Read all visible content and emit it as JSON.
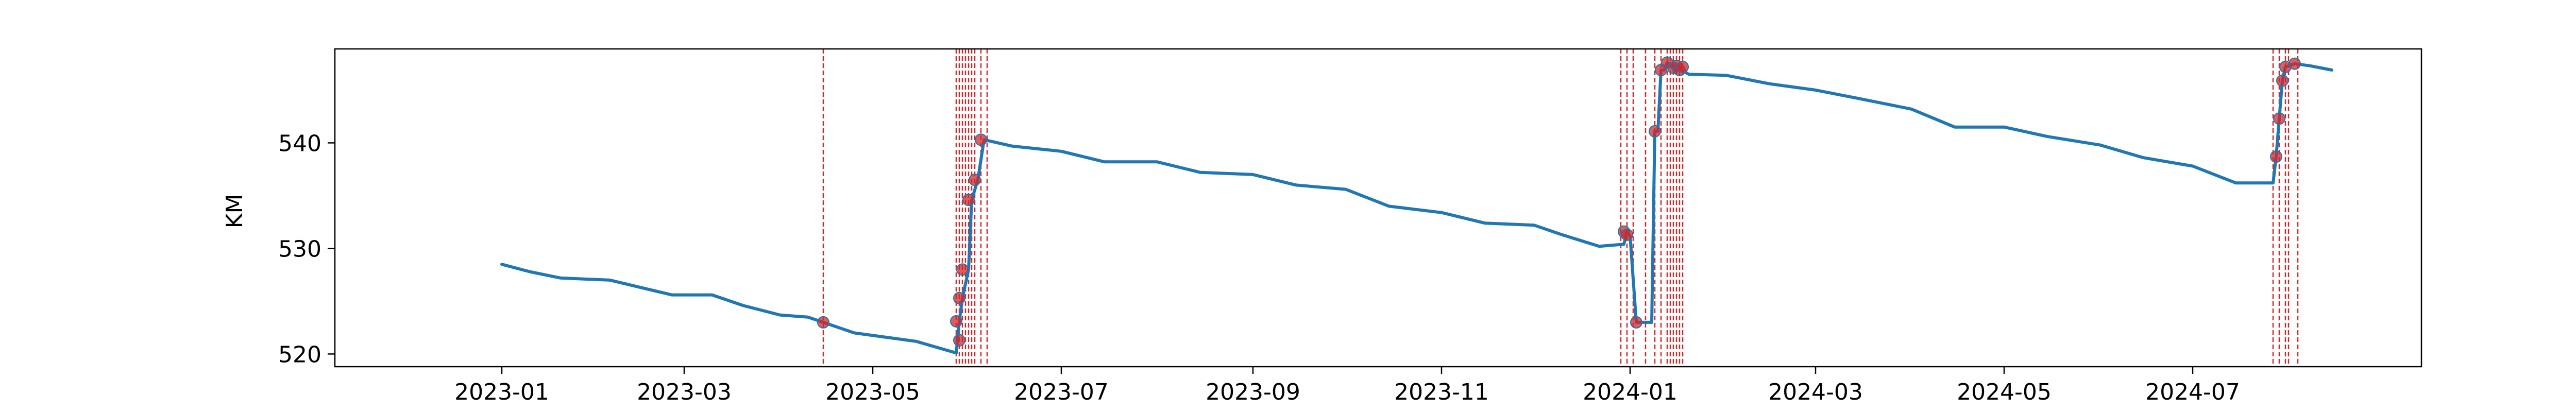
{
  "chart_data": {
    "type": "line",
    "title": "",
    "xlabel": "",
    "ylabel": "KM",
    "xlim": [
      "2022-11-08",
      "2024-09-13"
    ],
    "ylim": [
      518.8,
      548.9
    ],
    "x_ticks": [
      "2023-01",
      "2023-03",
      "2023-05",
      "2023-07",
      "2023-09",
      "2023-11",
      "2024-01",
      "2024-03",
      "2024-05",
      "2024-07"
    ],
    "y_ticks": [
      520,
      530,
      540
    ],
    "grid": false,
    "legend": "none",
    "colors": {
      "line": "#1f77b4",
      "markers": "#d62728",
      "vlines": "#d62728",
      "axes": "#000000"
    },
    "series": [
      {
        "points": [
          [
            "2023-01-01",
            528.5
          ],
          [
            "2023-01-10",
            527.8
          ],
          [
            "2023-01-20",
            527.2
          ],
          [
            "2023-02-05",
            527.0
          ],
          [
            "2023-02-15",
            526.3
          ],
          [
            "2023-02-25",
            525.6
          ],
          [
            "2023-03-10",
            525.6
          ],
          [
            "2023-03-20",
            524.6
          ],
          [
            "2023-04-01",
            523.7
          ],
          [
            "2023-04-10",
            523.5
          ],
          [
            "2023-04-15",
            523.0
          ],
          [
            "2023-04-25",
            522.0
          ],
          [
            "2023-05-05",
            521.6
          ],
          [
            "2023-05-15",
            521.2
          ],
          [
            "2023-05-28",
            520.1
          ],
          [
            "2023-05-29",
            523.1
          ],
          [
            "2023-05-30",
            525.3
          ],
          [
            "2023-06-01",
            528.0
          ],
          [
            "2023-06-02",
            534.6
          ],
          [
            "2023-06-04",
            536.5
          ],
          [
            "2023-06-06",
            540.3
          ],
          [
            "2023-06-15",
            539.7
          ],
          [
            "2023-07-01",
            539.2
          ],
          [
            "2023-07-15",
            538.2
          ],
          [
            "2023-08-01",
            538.2
          ],
          [
            "2023-08-15",
            537.2
          ],
          [
            "2023-09-01",
            537.0
          ],
          [
            "2023-09-15",
            536.0
          ],
          [
            "2023-10-01",
            535.6
          ],
          [
            "2023-10-15",
            534.0
          ],
          [
            "2023-11-01",
            533.4
          ],
          [
            "2023-11-15",
            532.4
          ],
          [
            "2023-12-01",
            532.2
          ],
          [
            "2023-12-10",
            531.3
          ],
          [
            "2023-12-22",
            530.2
          ],
          [
            "2023-12-30",
            530.4
          ],
          [
            "2023-12-31",
            531.6
          ],
          [
            "2024-01-01",
            531.2
          ],
          [
            "2024-01-03",
            523.0
          ],
          [
            "2024-01-08",
            523.0
          ],
          [
            "2024-01-09",
            541.1
          ],
          [
            "2024-01-10",
            541.1
          ],
          [
            "2024-01-11",
            546.9
          ],
          [
            "2024-01-12",
            546.9
          ],
          [
            "2024-01-13",
            547.6
          ],
          [
            "2024-01-15",
            547.3
          ],
          [
            "2024-01-17",
            547.0
          ],
          [
            "2024-01-20",
            546.5
          ],
          [
            "2024-02-01",
            546.4
          ],
          [
            "2024-02-15",
            545.6
          ],
          [
            "2024-03-01",
            545.0
          ],
          [
            "2024-03-15",
            544.2
          ],
          [
            "2024-04-01",
            543.2
          ],
          [
            "2024-04-15",
            541.5
          ],
          [
            "2024-05-01",
            541.5
          ],
          [
            "2024-05-15",
            540.6
          ],
          [
            "2024-06-01",
            539.8
          ],
          [
            "2024-06-15",
            538.6
          ],
          [
            "2024-07-01",
            537.8
          ],
          [
            "2024-07-15",
            536.2
          ],
          [
            "2024-07-27",
            536.2
          ],
          [
            "2024-07-28",
            538.7
          ],
          [
            "2024-07-29",
            542.3
          ],
          [
            "2024-07-30",
            545.9
          ],
          [
            "2024-07-31",
            547.2
          ],
          [
            "2024-08-03",
            547.5
          ],
          [
            "2024-08-08",
            547.3
          ],
          [
            "2024-08-15",
            546.9
          ]
        ]
      }
    ],
    "markers": [
      [
        "2023-04-15",
        523.0
      ],
      [
        "2023-05-28",
        523.1
      ],
      [
        "2023-05-29",
        521.3
      ],
      [
        "2023-05-29",
        525.3
      ],
      [
        "2023-05-30",
        528.0
      ],
      [
        "2023-06-01",
        534.6
      ],
      [
        "2023-06-03",
        536.5
      ],
      [
        "2023-06-05",
        540.3
      ],
      [
        "2023-12-30",
        531.6
      ],
      [
        "2023-12-31",
        531.3
      ],
      [
        "2024-01-03",
        523.0
      ],
      [
        "2024-01-09",
        541.1
      ],
      [
        "2024-01-11",
        546.9
      ],
      [
        "2024-01-13",
        547.6
      ],
      [
        "2024-01-15",
        547.1
      ],
      [
        "2024-01-16",
        547.3
      ],
      [
        "2024-01-17",
        546.9
      ],
      [
        "2024-01-18",
        547.2
      ],
      [
        "2024-07-28",
        538.7
      ],
      [
        "2024-07-29",
        542.3
      ],
      [
        "2024-07-30",
        545.9
      ],
      [
        "2024-07-31",
        547.2
      ],
      [
        "2024-08-03",
        547.5
      ]
    ],
    "vlines": [
      "2023-04-15",
      "2023-05-28",
      "2023-05-29",
      "2023-05-30",
      "2023-05-31",
      "2023-06-01",
      "2023-06-02",
      "2023-06-03",
      "2023-06-05",
      "2023-06-07",
      "2023-12-29",
      "2023-12-31",
      "2024-01-02",
      "2024-01-06",
      "2024-01-09",
      "2024-01-11",
      "2024-01-13",
      "2024-01-14",
      "2024-01-15",
      "2024-01-16",
      "2024-01-17",
      "2024-01-18",
      "2024-07-27",
      "2024-07-29",
      "2024-07-31",
      "2024-08-01",
      "2024-08-04"
    ]
  }
}
